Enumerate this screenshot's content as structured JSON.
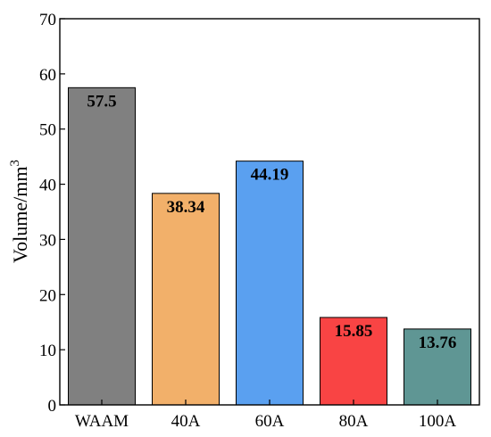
{
  "chart_data": {
    "type": "bar",
    "categories": [
      "WAAM",
      "40A",
      "60A",
      "80A",
      "100A"
    ],
    "values": [
      57.5,
      38.34,
      44.19,
      15.85,
      13.76
    ],
    "data_labels": [
      "57.5",
      "38.34",
      "44.19",
      "15.85",
      "13.76"
    ],
    "colors": [
      "#808080",
      "#f2b06a",
      "#5aa0f0",
      "#f94444",
      "#5f9694"
    ],
    "title": "",
    "xlabel": "",
    "ylabel": "Volume/mm",
    "ylabel_superscript": "3",
    "ylim": [
      0,
      70
    ],
    "yticks": [
      0,
      10,
      20,
      30,
      40,
      50,
      60,
      70
    ],
    "grid": false,
    "legend": "none"
  }
}
